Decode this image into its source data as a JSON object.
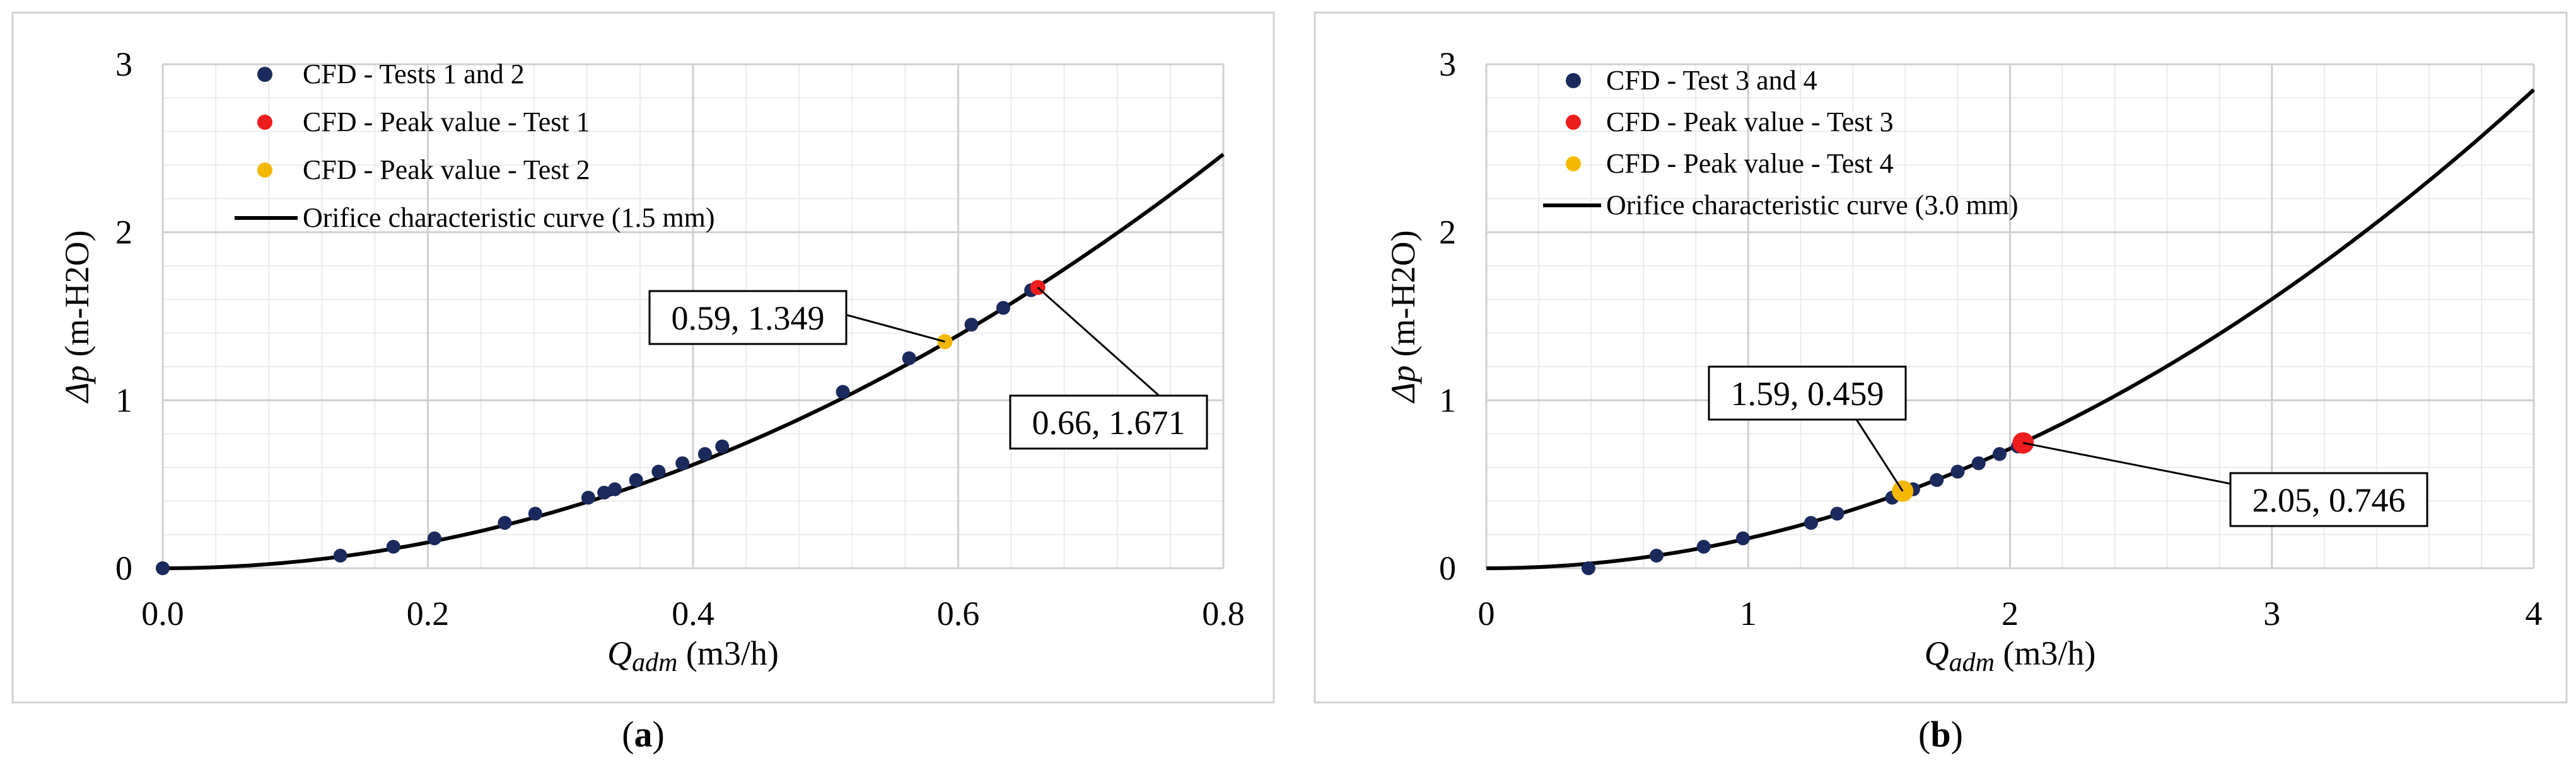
{
  "chart_data": [
    {
      "type": "scatter",
      "caption_letter": "a",
      "xlim": [
        0,
        0.8
      ],
      "ylim": [
        0,
        3
      ],
      "x_ticks": [
        0,
        0.2,
        0.4,
        0.6,
        0.8
      ],
      "x_tick_labels": [
        "0.0",
        "0.2",
        "0.4",
        "0.6",
        "0.8"
      ],
      "y_ticks": [
        0,
        1,
        2,
        3
      ],
      "y_tick_labels": [
        "0",
        "1",
        "2",
        "3"
      ],
      "xlabel_italic": "Q",
      "xlabel_sub": "adm",
      "xlabel_rest": " (m3/h)",
      "ylabel_italic": "Δp",
      "ylabel_rest": " (m-H2O)",
      "grid": true,
      "legend_position": "top-left",
      "legend": [
        {
          "label": "CFD - Tests 1 and 2",
          "marker": "dot",
          "color": "#1b2a5c"
        },
        {
          "label": "CFD - Peak value - Test 1",
          "marker": "dot",
          "color": "#ee1c1c"
        },
        {
          "label": "CFD - Peak value - Test 2",
          "marker": "dot",
          "color": "#f5b800"
        },
        {
          "label": "Orifice characteristic curve (1.5 mm)",
          "marker": "line",
          "color": "#000000"
        }
      ],
      "series": [
        {
          "name": "CFD - Tests 1 and 2",
          "color": "#1b2a5c",
          "points": [
            [
              0.0,
              0.0
            ],
            [
              0.134,
              0.075
            ],
            [
              0.174,
              0.128
            ],
            [
              0.205,
              0.178
            ],
            [
              0.258,
              0.27
            ],
            [
              0.281,
              0.325
            ],
            [
              0.321,
              0.42
            ],
            [
              0.333,
              0.45
            ],
            [
              0.341,
              0.47
            ],
            [
              0.357,
              0.525
            ],
            [
              0.374,
              0.575
            ],
            [
              0.392,
              0.625
            ],
            [
              0.409,
              0.68
            ],
            [
              0.422,
              0.725
            ],
            [
              0.513,
              1.05
            ],
            [
              0.563,
              1.25
            ],
            [
              0.61,
              1.45
            ],
            [
              0.634,
              1.55
            ],
            [
              0.655,
              1.655
            ]
          ]
        },
        {
          "name": "CFD - Peak value - Test 1",
          "color": "#ee1c1c",
          "points": [
            [
              0.66,
              1.671
            ]
          ]
        },
        {
          "name": "CFD - Peak value - Test 2",
          "color": "#f5b800",
          "points": [
            [
              0.59,
              1.349
            ]
          ]
        }
      ],
      "curve": {
        "name": "Orifice characteristic curve (1.5 mm)",
        "coef": 3.85,
        "x_max": 0.8
      },
      "annotations": [
        {
          "text": "0.59, 1.349",
          "point": [
            0.59,
            1.349
          ]
        },
        {
          "text": "0.66, 1.671",
          "point": [
            0.66,
            1.671
          ]
        }
      ]
    },
    {
      "type": "scatter",
      "caption_letter": "b",
      "xlim": [
        0,
        4
      ],
      "ylim": [
        0,
        3
      ],
      "x_ticks": [
        0,
        1,
        2,
        3,
        4
      ],
      "x_tick_labels": [
        "0",
        "1",
        "2",
        "3",
        "4"
      ],
      "y_ticks": [
        0,
        1,
        2,
        3
      ],
      "y_tick_labels": [
        "0",
        "1",
        "2",
        "3"
      ],
      "xlabel_italic": "Q",
      "xlabel_sub": "adm",
      "xlabel_rest": " (m3/h)",
      "ylabel_italic": "Δp",
      "ylabel_rest": " (m-H2O)",
      "grid": true,
      "legend_position": "top-left",
      "legend": [
        {
          "label": "CFD - Test 3 and 4",
          "marker": "dot",
          "color": "#1b2a5c"
        },
        {
          "label": "CFD - Peak value - Test 3",
          "marker": "dot",
          "color": "#ee1c1c"
        },
        {
          "label": "CFD - Peak value - Test 4",
          "marker": "dot",
          "color": "#f5b800"
        },
        {
          "label": "Orifice characteristic curve (3.0 mm)",
          "marker": "line",
          "color": "#000000"
        }
      ],
      "series": [
        {
          "name": "CFD - Test 3 and 4",
          "color": "#1b2a5c",
          "points": [
            [
              0.39,
              0.0
            ],
            [
              0.65,
              0.075
            ],
            [
              0.83,
              0.128
            ],
            [
              0.98,
              0.178
            ],
            [
              1.24,
              0.27
            ],
            [
              1.34,
              0.325
            ],
            [
              1.55,
              0.42
            ],
            [
              1.63,
              0.47
            ],
            [
              1.72,
              0.525
            ],
            [
              1.8,
              0.575
            ],
            [
              1.88,
              0.625
            ],
            [
              1.96,
              0.68
            ],
            [
              2.03,
              0.725
            ]
          ]
        },
        {
          "name": "CFD - Peak value - Test 3",
          "color": "#ee1c1c",
          "points": [
            [
              2.05,
              0.746
            ]
          ]
        },
        {
          "name": "CFD - Peak value - Test 4",
          "color": "#f5b800",
          "points": [
            [
              1.59,
              0.459
            ]
          ]
        }
      ],
      "curve": {
        "name": "Orifice characteristic curve (3.0 mm)",
        "coef": 0.178,
        "x_max": 4.0
      },
      "annotations": [
        {
          "text": "1.59, 0.459",
          "point": [
            1.59,
            0.459
          ]
        },
        {
          "text": "2.05, 0.746",
          "point": [
            2.05,
            0.746
          ]
        }
      ]
    }
  ]
}
